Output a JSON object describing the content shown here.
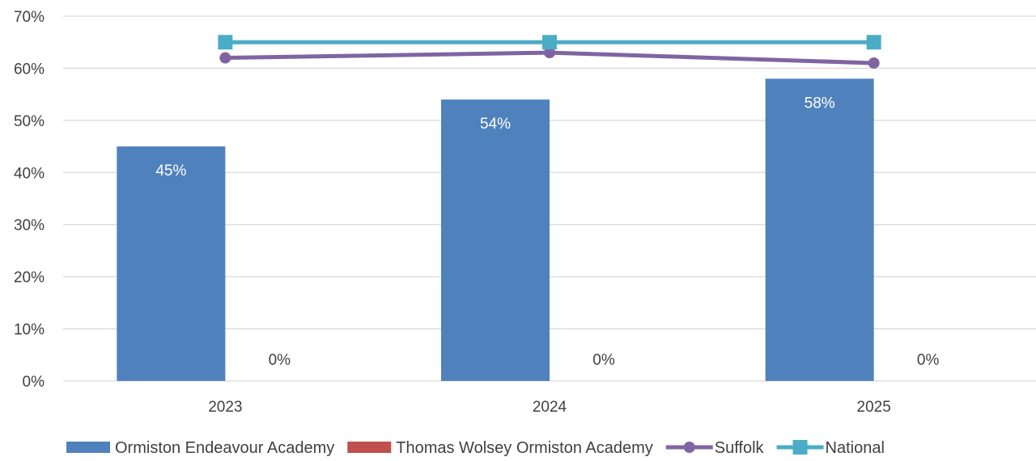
{
  "chart_data": {
    "type": "bar",
    "categories": [
      "2023",
      "2024",
      "2025"
    ],
    "ylim": [
      0,
      70
    ],
    "yticks": [
      "0%",
      "10%",
      "20%",
      "30%",
      "40%",
      "50%",
      "60%",
      "70%"
    ],
    "grid": true,
    "legend_position": "bottom",
    "title": "",
    "xlabel": "",
    "ylabel": "",
    "bar_series": [
      {
        "name": "Ormiston Endeavour Academy",
        "values": [
          45,
          54,
          58
        ],
        "labels": [
          "45%",
          "54%",
          "58%"
        ],
        "color": "#4f81bd",
        "label_color": "#ffffff"
      },
      {
        "name": "Thomas Wolsey Ormiston Academy",
        "values": [
          0,
          0,
          0
        ],
        "labels": [
          "0%",
          "0%",
          "0%"
        ],
        "color": "#c0504d",
        "label_color": "#404040"
      }
    ],
    "line_series": [
      {
        "name": "Suffolk",
        "values": [
          62,
          63,
          61
        ],
        "color": "#8064a2",
        "marker": "circle"
      },
      {
        "name": "National",
        "values": [
          65,
          65,
          65
        ],
        "color": "#4bacc6",
        "marker": "square"
      }
    ]
  }
}
